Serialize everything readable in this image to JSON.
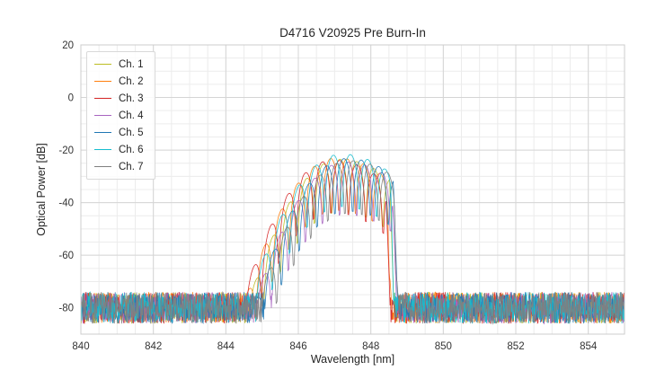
{
  "chart_data": {
    "type": "line",
    "title": "D4716 V20925 Pre Burn-In",
    "xlabel": "Wavelength [nm]",
    "ylabel": "Optical Power [dB]",
    "xlim": [
      840,
      855
    ],
    "ylim": [
      -90,
      20
    ],
    "xticks": [
      840,
      842,
      844,
      846,
      848,
      850,
      852,
      854
    ],
    "yticks": [
      20,
      0,
      -20,
      -40,
      -60,
      -80
    ],
    "x_minor_step": 0.5,
    "y_minor_step": 5,
    "grid": true,
    "legend_position": "upper-left",
    "noise_floor_db": -80,
    "noise_band_db": [
      -86,
      -74
    ],
    "signal_band_nm": [
      844.6,
      848.7
    ],
    "envelope_model": "quadratic_db_with_mode_ripple",
    "env_curv_left_db_per_nm2": 8.5,
    "env_curv_right_db_per_nm2": 4.0,
    "ripple_depth_db": 20,
    "cutoff_slope_db_per_nm": 400,
    "sample_step_nm": 0.012,
    "series": [
      {
        "name": "Ch. 1",
        "color": "#bcbd22",
        "center_nm": 847.15,
        "peak_db": -23.5,
        "mode_spacing_nm": 0.47,
        "phase": 0.0,
        "cutoff_nm": 848.52
      },
      {
        "name": "Ch. 2",
        "color": "#ff7f0e",
        "center_nm": 847.05,
        "peak_db": -23.0,
        "mode_spacing_nm": 0.46,
        "phase": 0.35,
        "cutoff_nm": 848.47
      },
      {
        "name": "Ch. 3",
        "color": "#d62728",
        "center_nm": 846.95,
        "peak_db": -23.8,
        "mode_spacing_nm": 0.48,
        "phase": 0.6,
        "cutoff_nm": 848.42
      },
      {
        "name": "Ch. 4",
        "color": "#a864c0",
        "center_nm": 847.3,
        "peak_db": -24.5,
        "mode_spacing_nm": 0.47,
        "phase": 0.85,
        "cutoff_nm": 848.6
      },
      {
        "name": "Ch. 5",
        "color": "#1f77b4",
        "center_nm": 847.35,
        "peak_db": -23.2,
        "mode_spacing_nm": 0.49,
        "phase": 0.2,
        "cutoff_nm": 848.62
      },
      {
        "name": "Ch. 6",
        "color": "#17becf",
        "center_nm": 847.2,
        "peak_db": -21.5,
        "mode_spacing_nm": 0.48,
        "phase": 0.5,
        "cutoff_nm": 848.55
      },
      {
        "name": "Ch. 7",
        "color": "#7f7f7f",
        "center_nm": 847.4,
        "peak_db": -24.0,
        "mode_spacing_nm": 0.47,
        "phase": 0.75,
        "cutoff_nm": 848.66
      }
    ]
  }
}
